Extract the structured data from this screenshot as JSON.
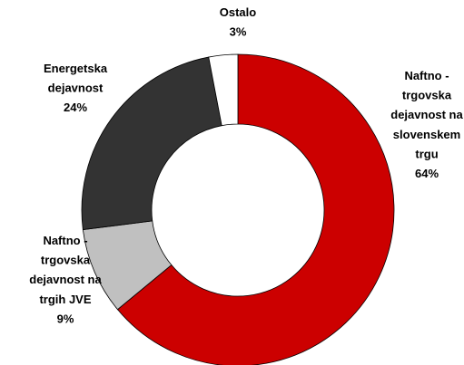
{
  "chart_data": {
    "type": "donut",
    "categories": [
      "Naftno -\ntrgovska\ndejavnost na\nslovenskem\ntrgu",
      "Naftno -\ntrgovska\ndejavnost na\ntrgih JVE",
      "Energetska\ndejavnost",
      "Ostalo"
    ],
    "values": [
      64,
      9,
      24,
      3
    ],
    "value_labels": [
      "64%",
      "9%",
      "24%",
      "3%"
    ],
    "colors": [
      "#cc0000",
      "#c0c0c0",
      "#333333",
      "#ffffff"
    ]
  }
}
